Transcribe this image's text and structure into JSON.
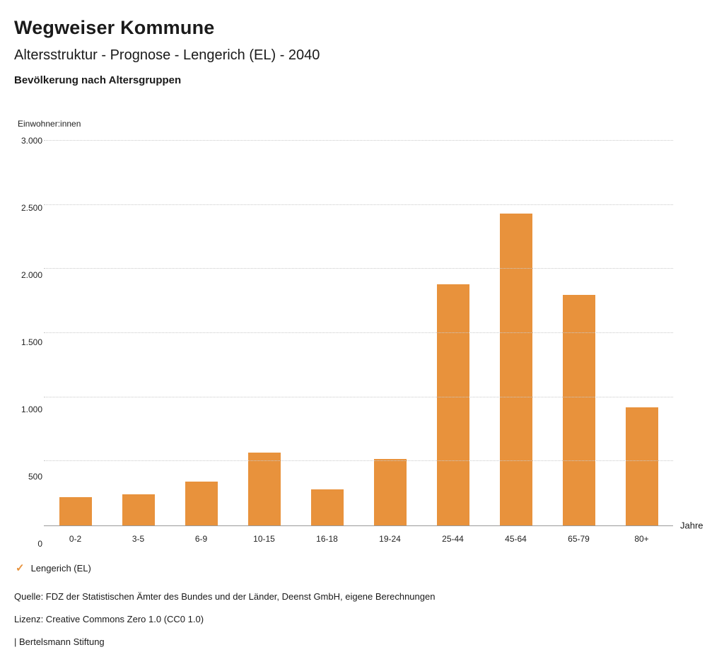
{
  "header": {
    "title": "Wegweiser Kommune",
    "subtitle": "Altersstruktur - Prognose - Lengerich (EL) - 2040",
    "section": "Bevölkerung nach Altersgruppen"
  },
  "chart_data": {
    "type": "bar",
    "title": "Bevölkerung nach Altersgruppen",
    "y_axis_title": "Einwohner:innen",
    "x_axis_title": "Jahre",
    "categories": [
      "0-2",
      "3-5",
      "6-9",
      "10-15",
      "16-18",
      "19-24",
      "25-44",
      "45-64",
      "65-79",
      "80+"
    ],
    "values": [
      220,
      240,
      340,
      570,
      280,
      520,
      1880,
      2430,
      1800,
      920
    ],
    "series": [
      {
        "name": "Lengerich (EL)",
        "values": [
          220,
          240,
          340,
          570,
          280,
          520,
          1880,
          2430,
          1800,
          920
        ]
      }
    ],
    "ylim": [
      0,
      3000
    ],
    "yticks": [
      {
        "value": 0,
        "label": "0"
      },
      {
        "value": 500,
        "label": "500"
      },
      {
        "value": 1000,
        "label": "1.000"
      },
      {
        "value": 1500,
        "label": "1.500"
      },
      {
        "value": 2000,
        "label": "2.000"
      },
      {
        "value": 2500,
        "label": "2.500"
      },
      {
        "value": 3000,
        "label": "3.000"
      }
    ],
    "grid": true,
    "legend_position": "bottom",
    "bar_color": "#E8923C"
  },
  "legend": {
    "label": "Lengerich (EL)",
    "check_color": "#E8923C",
    "check_glyph": "✓"
  },
  "footer": {
    "source": "Quelle: FDZ der Statistischen Ämter des Bundes und der Länder, Deenst GmbH, eigene Berechnungen",
    "license": "Lizenz: Creative Commons Zero 1.0 (CC0 1.0)",
    "attribution": "| Bertelsmann Stiftung"
  }
}
